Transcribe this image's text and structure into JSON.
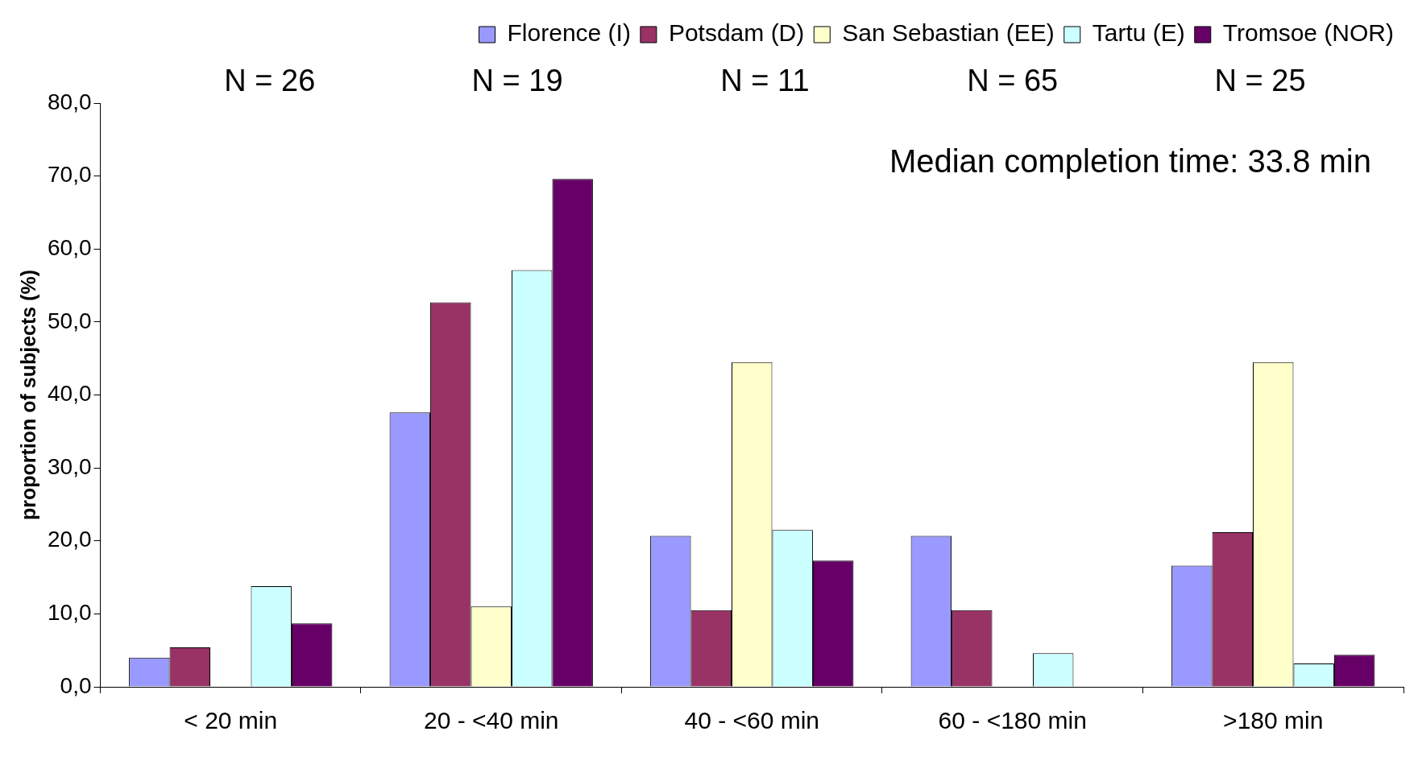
{
  "chart_data": {
    "type": "bar",
    "ylabel": "proportion of subjects (%)",
    "categories": [
      "< 20 min",
      "20 - <40 min",
      "40 - <60 min",
      "60 - <180 min",
      ">180 min"
    ],
    "series": [
      {
        "name": "Florence (I)",
        "color": "#9999ff",
        "values": [
          4.0,
          37.6,
          20.7,
          20.7,
          16.6
        ]
      },
      {
        "name": "Potsdam (D)",
        "color": "#993366",
        "values": [
          5.4,
          52.7,
          10.5,
          10.5,
          21.2
        ]
      },
      {
        "name": "San Sebastian (EE)",
        "color": "#ffffcc",
        "values": [
          0,
          11.0,
          44.5,
          0,
          44.5
        ]
      },
      {
        "name": "Tartu (E)",
        "color": "#ccffff",
        "values": [
          13.8,
          57.1,
          21.5,
          4.6,
          3.2
        ]
      },
      {
        "name": "Tromsoe (NOR)",
        "color": "#660066",
        "values": [
          8.7,
          69.6,
          17.3,
          0,
          4.4
        ]
      }
    ],
    "ylim": [
      0,
      80
    ],
    "yticks": [
      {
        "value": 0,
        "label": "0,0"
      },
      {
        "value": 10,
        "label": "10,0"
      },
      {
        "value": 20,
        "label": "20,0"
      },
      {
        "value": 30,
        "label": "30,0"
      },
      {
        "value": 40,
        "label": "40,0"
      },
      {
        "value": 50,
        "label": "50,0"
      },
      {
        "value": 60,
        "label": "60,0"
      },
      {
        "value": 70,
        "label": "70,0"
      },
      {
        "value": 80,
        "label": "80,0"
      }
    ],
    "grid": false,
    "legend": "top",
    "annotations": [
      "N = 26",
      "N = 19",
      "N = 11",
      "N = 65",
      "N = 25",
      "Median completion time: 33.8 min"
    ]
  }
}
